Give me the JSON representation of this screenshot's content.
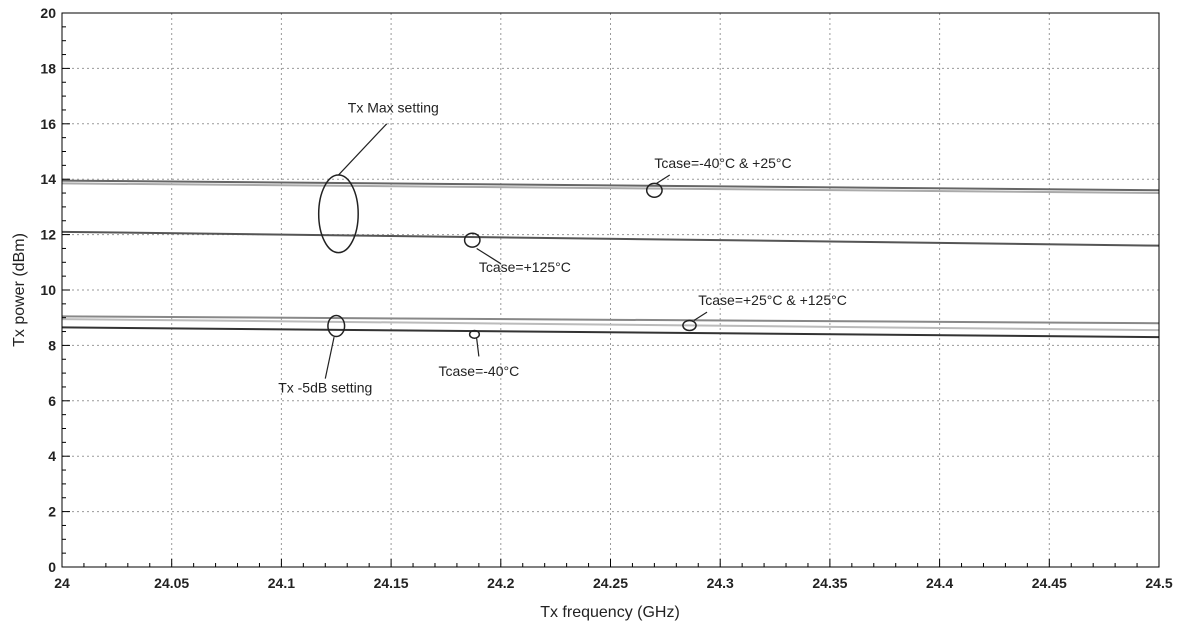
{
  "chart_data": {
    "type": "line",
    "xlabel": "Tx frequency (GHz)",
    "ylabel": "Tx power (dBm)",
    "xlim": [
      24,
      24.5
    ],
    "ylim": [
      0,
      20
    ],
    "x_ticks": [
      24,
      24.05,
      24.1,
      24.15,
      24.2,
      24.25,
      24.3,
      24.35,
      24.4,
      24.45,
      24.5
    ],
    "x_tick_labels": [
      "24",
      "24.05",
      "24.1",
      "24.15",
      "24.2",
      "24.25",
      "24.3",
      "24.35",
      "24.4",
      "24.45",
      "24.5"
    ],
    "y_ticks": [
      0,
      2,
      4,
      6,
      8,
      10,
      12,
      14,
      16,
      18,
      20
    ],
    "y_tick_labels": [
      "0",
      "2",
      "4",
      "6",
      "8",
      "10",
      "12",
      "14",
      "16",
      "18",
      "20"
    ],
    "grid": true,
    "series": [
      {
        "x": [
          24,
          24.5
        ],
        "y": [
          13.95,
          13.6
        ],
        "color": "#666666"
      },
      {
        "x": [
          24,
          24.5
        ],
        "y": [
          13.85,
          13.5
        ],
        "color": "#aaaaaa"
      },
      {
        "x": [
          24,
          24.5
        ],
        "y": [
          12.1,
          11.6
        ],
        "color": "#555555"
      },
      {
        "x": [
          24,
          24.5
        ],
        "y": [
          9.05,
          8.8
        ],
        "color": "#888888"
      },
      {
        "x": [
          24,
          24.5
        ],
        "y": [
          8.95,
          8.55
        ],
        "color": "#bbbbbb"
      },
      {
        "x": [
          24,
          24.5
        ],
        "y": [
          8.65,
          8.3
        ],
        "color": "#333333"
      }
    ],
    "annotations": [
      {
        "text": "Tx Max setting",
        "text_x": 24.151,
        "text_y": 16.4,
        "anchor": "middle",
        "ellipse": {
          "cx": 24.126,
          "cy": 12.75,
          "rx": 0.009,
          "ry": 1.4
        },
        "leader": [
          24.148,
          16.0,
          24.126,
          14.15
        ]
      },
      {
        "text": "Tcase=-40°C & +25°C",
        "text_x": 24.27,
        "text_y": 14.4,
        "anchor": "start",
        "ellipse": {
          "cx": 24.27,
          "cy": 13.6,
          "rx": 0.0035,
          "ry": 0.25
        },
        "leader": [
          24.277,
          14.15,
          24.271,
          13.85
        ]
      },
      {
        "text": "Tcase=+125°C",
        "text_x": 24.19,
        "text_y": 10.65,
        "anchor": "start",
        "ellipse": {
          "cx": 24.187,
          "cy": 11.8,
          "rx": 0.0035,
          "ry": 0.25
        },
        "leader": [
          24.189,
          11.5,
          24.2,
          10.95
        ]
      },
      {
        "text": "Tcase=+25°C & +125°C",
        "text_x": 24.29,
        "text_y": 9.45,
        "anchor": "start",
        "ellipse": {
          "cx": 24.286,
          "cy": 8.72,
          "rx": 0.003,
          "ry": 0.18
        },
        "leader": [
          24.294,
          9.2,
          24.288,
          8.9
        ]
      },
      {
        "text": "Tx -5dB setting",
        "text_x": 24.12,
        "text_y": 6.3,
        "anchor": "middle",
        "ellipse": {
          "cx": 24.125,
          "cy": 8.7,
          "rx": 0.0038,
          "ry": 0.38
        },
        "leader": [
          24.124,
          8.3,
          24.12,
          6.8
        ]
      },
      {
        "text": "Tcase=-40°C",
        "text_x": 24.19,
        "text_y": 6.9,
        "anchor": "middle",
        "ellipse": {
          "cx": 24.188,
          "cy": 8.4,
          "rx": 0.0022,
          "ry": 0.14
        },
        "leader": [
          24.189,
          8.25,
          24.19,
          7.6
        ]
      }
    ]
  }
}
